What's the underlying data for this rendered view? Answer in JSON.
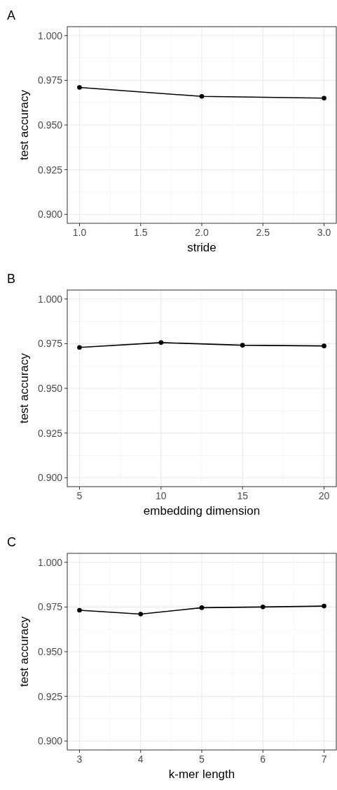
{
  "chart_data": [
    {
      "type": "line",
      "title": "A",
      "xlabel": "stride",
      "ylabel": "test accuracy",
      "x": [
        1,
        2,
        3
      ],
      "series": [
        {
          "color": "#000000",
          "values": [
            0.971,
            0.966,
            0.965
          ]
        }
      ],
      "xlim": [
        0.9,
        3.1
      ],
      "xticks": [
        {
          "value": 1,
          "label": "1.0"
        },
        {
          "value": 1.5,
          "label": "1.5"
        },
        {
          "value": 2,
          "label": "2.0"
        },
        {
          "value": 2.5,
          "label": "2.5"
        },
        {
          "value": 3,
          "label": "3.0"
        }
      ],
      "ylim": [
        0.895,
        1.005
      ],
      "yticks": [
        {
          "value": 0.9,
          "label": "0.900"
        },
        {
          "value": 0.925,
          "label": "0.925"
        },
        {
          "value": 0.95,
          "label": "0.950"
        },
        {
          "value": 0.975,
          "label": "0.975"
        },
        {
          "value": 1,
          "label": "1.000"
        }
      ],
      "grid": true,
      "marker": "circle",
      "line_style": "solid"
    },
    {
      "type": "line",
      "title": "B",
      "xlabel": "embedding dimension",
      "ylabel": "test accuracy",
      "x": [
        5,
        10,
        15,
        20
      ],
      "series": [
        {
          "color": "#000000",
          "values": [
            0.9729,
            0.9756,
            0.9741,
            0.9737
          ]
        }
      ],
      "xlim": [
        4.25,
        20.75
      ],
      "xticks": [
        5,
        10,
        15,
        20
      ],
      "ylim": [
        0.895,
        1.005
      ],
      "yticks": [
        {
          "value": 0.9,
          "label": "0.900"
        },
        {
          "value": 0.925,
          "label": "0.925"
        },
        {
          "value": 0.95,
          "label": "0.950"
        },
        {
          "value": 0.975,
          "label": "0.975"
        },
        {
          "value": 1,
          "label": "1.000"
        }
      ],
      "grid": true,
      "marker": "circle",
      "line_style": "solid"
    },
    {
      "type": "line",
      "title": "C",
      "xlabel": "k-mer length",
      "ylabel": "test accuracy",
      "x": [
        3,
        4,
        5,
        6,
        7
      ],
      "series": [
        {
          "color": "#000000",
          "values": [
            0.9732,
            0.971,
            0.9746,
            0.975,
            0.9755
          ]
        }
      ],
      "xlim": [
        2.8,
        7.2
      ],
      "xticks": [
        3,
        4,
        5,
        6,
        7
      ],
      "ylim": [
        0.895,
        1.005
      ],
      "yticks": [
        {
          "value": 0.9,
          "label": "0.900"
        },
        {
          "value": 0.925,
          "label": "0.925"
        },
        {
          "value": 0.95,
          "label": "0.950"
        },
        {
          "value": 0.975,
          "label": "0.975"
        },
        {
          "value": 1,
          "label": "1.000"
        }
      ],
      "grid": true,
      "marker": "circle",
      "line_style": "solid"
    }
  ]
}
